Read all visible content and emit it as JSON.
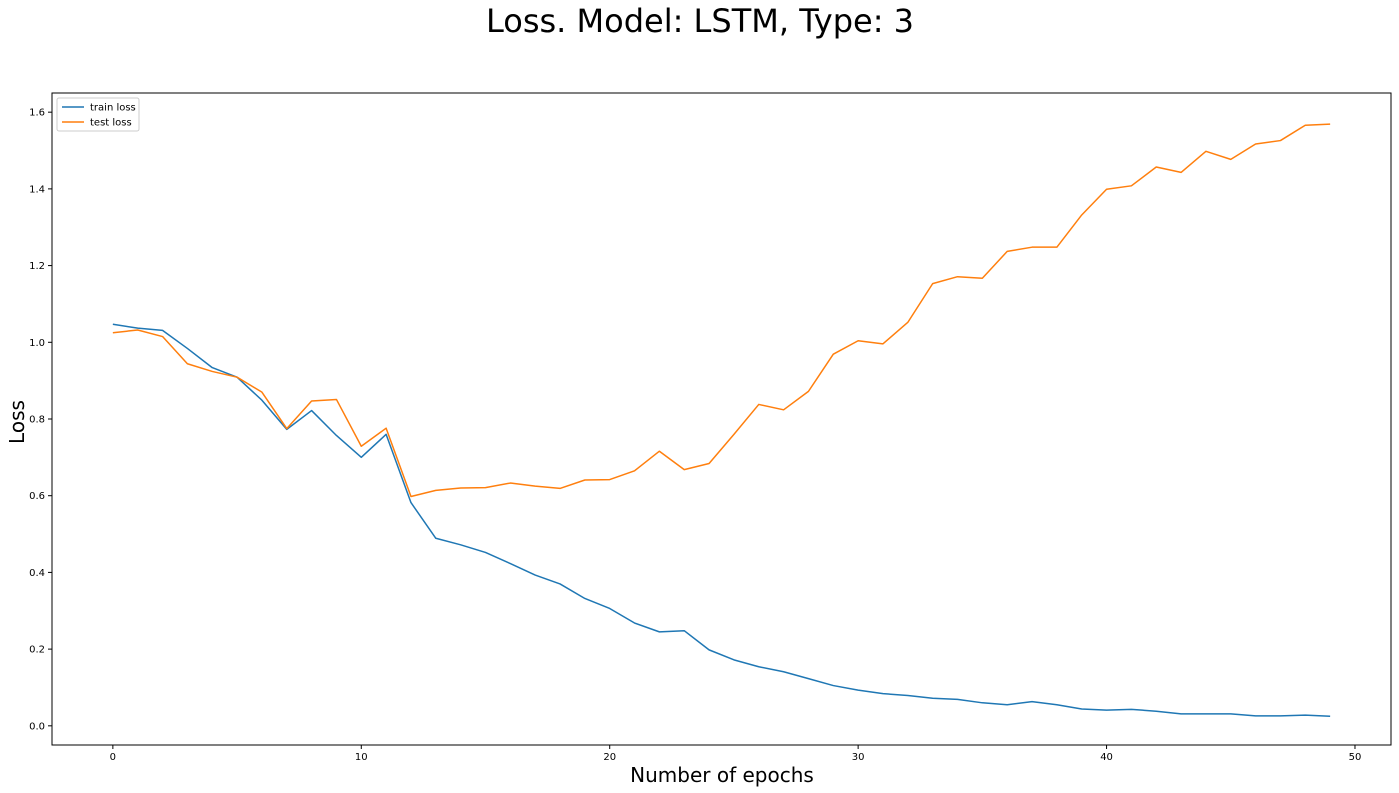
{
  "chart_data": {
    "type": "line",
    "title": "Loss. Model: LSTM, Type: 3",
    "xlabel": "Number of epochs",
    "ylabel": "Loss",
    "xlim": [
      -2.45,
      51.45
    ],
    "ylim": [
      -0.05,
      1.65
    ],
    "xticks": [
      0,
      10,
      20,
      30,
      40,
      50
    ],
    "yticks": [
      0.0,
      0.2,
      0.4,
      0.6,
      0.8,
      1.0,
      1.2,
      1.4,
      1.6
    ],
    "grid": false,
    "legend_position": "upper-left",
    "x": [
      0,
      1,
      2,
      3,
      4,
      5,
      6,
      7,
      8,
      9,
      10,
      11,
      12,
      13,
      14,
      15,
      16,
      17,
      18,
      19,
      20,
      21,
      22,
      23,
      24,
      25,
      26,
      27,
      28,
      29,
      30,
      31,
      32,
      33,
      34,
      35,
      36,
      37,
      38,
      39,
      40,
      41,
      42,
      43,
      44,
      45,
      46,
      47,
      48,
      49
    ],
    "series": [
      {
        "name": "train loss",
        "color": "#1f77b4",
        "values": [
          1.047,
          1.037,
          1.031,
          0.984,
          0.934,
          0.909,
          0.849,
          0.773,
          0.822,
          0.757,
          0.7,
          0.76,
          0.582,
          0.489,
          0.472,
          0.452,
          0.423,
          0.393,
          0.37,
          0.332,
          0.306,
          0.268,
          0.245,
          0.248,
          0.198,
          0.172,
          0.154,
          0.141,
          0.123,
          0.105,
          0.093,
          0.084,
          0.079,
          0.072,
          0.069,
          0.06,
          0.055,
          0.063,
          0.055,
          0.044,
          0.041,
          0.043,
          0.038,
          0.031,
          0.031,
          0.031,
          0.026,
          0.026,
          0.028,
          0.025
        ]
      },
      {
        "name": "test loss",
        "color": "#ff7f0e",
        "values": [
          1.025,
          1.032,
          1.015,
          0.944,
          0.924,
          0.909,
          0.87,
          0.775,
          0.847,
          0.851,
          0.729,
          0.776,
          0.598,
          0.614,
          0.62,
          0.621,
          0.633,
          0.625,
          0.619,
          0.641,
          0.642,
          0.665,
          0.716,
          0.668,
          0.684,
          0.76,
          0.838,
          0.824,
          0.872,
          0.969,
          1.004,
          0.996,
          1.052,
          1.153,
          1.171,
          1.167,
          1.237,
          1.248,
          1.248,
          1.332,
          1.399,
          1.408,
          1.457,
          1.443,
          1.498,
          1.477,
          1.517,
          1.526,
          1.566,
          1.569
        ]
      }
    ]
  }
}
